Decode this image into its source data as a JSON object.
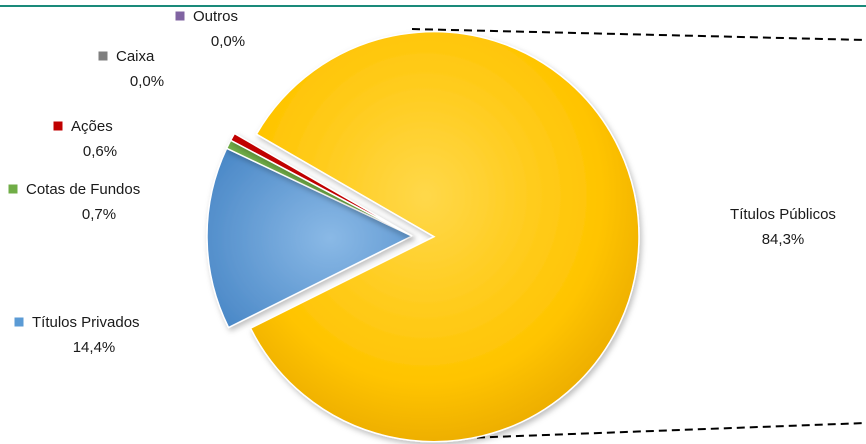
{
  "chart_data": {
    "type": "pie",
    "title": "",
    "legend": "none",
    "accent_line_color": "#1a8a7a",
    "slices": [
      {
        "label": "Títulos Públicos",
        "value": 84.3,
        "value_text": "84,3%",
        "color": "#ffc000",
        "exploded": true
      },
      {
        "label": "Títulos Privados",
        "value": 14.4,
        "value_text": "14,4%",
        "color": "#5b9bd5",
        "exploded": false
      },
      {
        "label": "Cotas de Fundos",
        "value": 0.7,
        "value_text": "0,7%",
        "color": "#70ad47",
        "exploded": false
      },
      {
        "label": "Ações",
        "value": 0.6,
        "value_text": "0,6%",
        "color": "#c00000",
        "exploded": false
      },
      {
        "label": "Caixa",
        "value": 0.0,
        "value_text": "0,0%",
        "color": "#7f7f7f",
        "exploded": false
      },
      {
        "label": "Outros",
        "value": 0.0,
        "value_text": "0,0%",
        "color": "#8064a2",
        "exploded": false
      }
    ]
  }
}
